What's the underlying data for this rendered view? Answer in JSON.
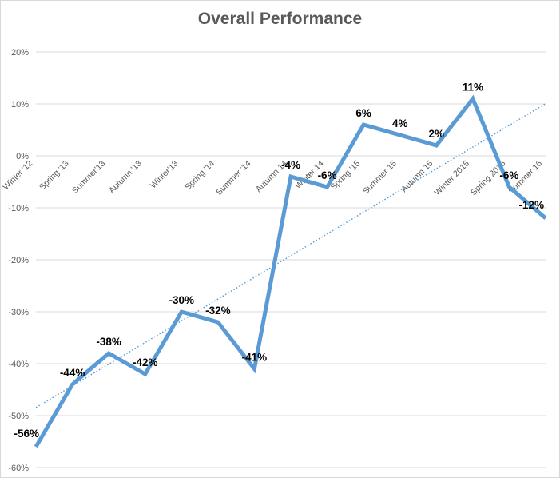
{
  "chart_data": {
    "type": "line",
    "title": "Overall Performance",
    "xlabel": "",
    "ylabel": "",
    "categories": [
      "Winter '12",
      "Spring '13",
      "Summer'13",
      "Autumn '13",
      "Winter'13",
      "Spring '14",
      "Summer '14",
      "Autumn 14",
      "Winter 14",
      "Spring '15",
      "Summer 15",
      "Autumn 15",
      "Winter 2015",
      "Spring 2016",
      "Summer 16"
    ],
    "series": [
      {
        "values": [
          -56,
          -44,
          -38,
          -42,
          -30,
          -32,
          -41,
          -4,
          -6,
          6,
          4,
          2,
          11,
          -6,
          -12
        ],
        "labels": [
          "-56%",
          "-44%",
          "-38%",
          "-42%",
          "-30%",
          "-32%",
          "-41%",
          "-4%",
          "-6%",
          "6%",
          "4%",
          "2%",
          "11%",
          "-6%",
          "-12%"
        ],
        "color": "#5b9bd5"
      }
    ],
    "trendline": {
      "type": "linear",
      "style": "dotted",
      "color": "#5b9bd5"
    },
    "ylim": [
      -60,
      20
    ],
    "yticks": [
      20,
      10,
      0,
      -10,
      -20,
      -30,
      -40,
      -50,
      -60
    ],
    "ytick_labels": [
      "20%",
      "10%",
      "0%",
      "-10%",
      "-20%",
      "-30%",
      "-40%",
      "-50%",
      "-60%"
    ],
    "grid": true,
    "legend": "none"
  }
}
